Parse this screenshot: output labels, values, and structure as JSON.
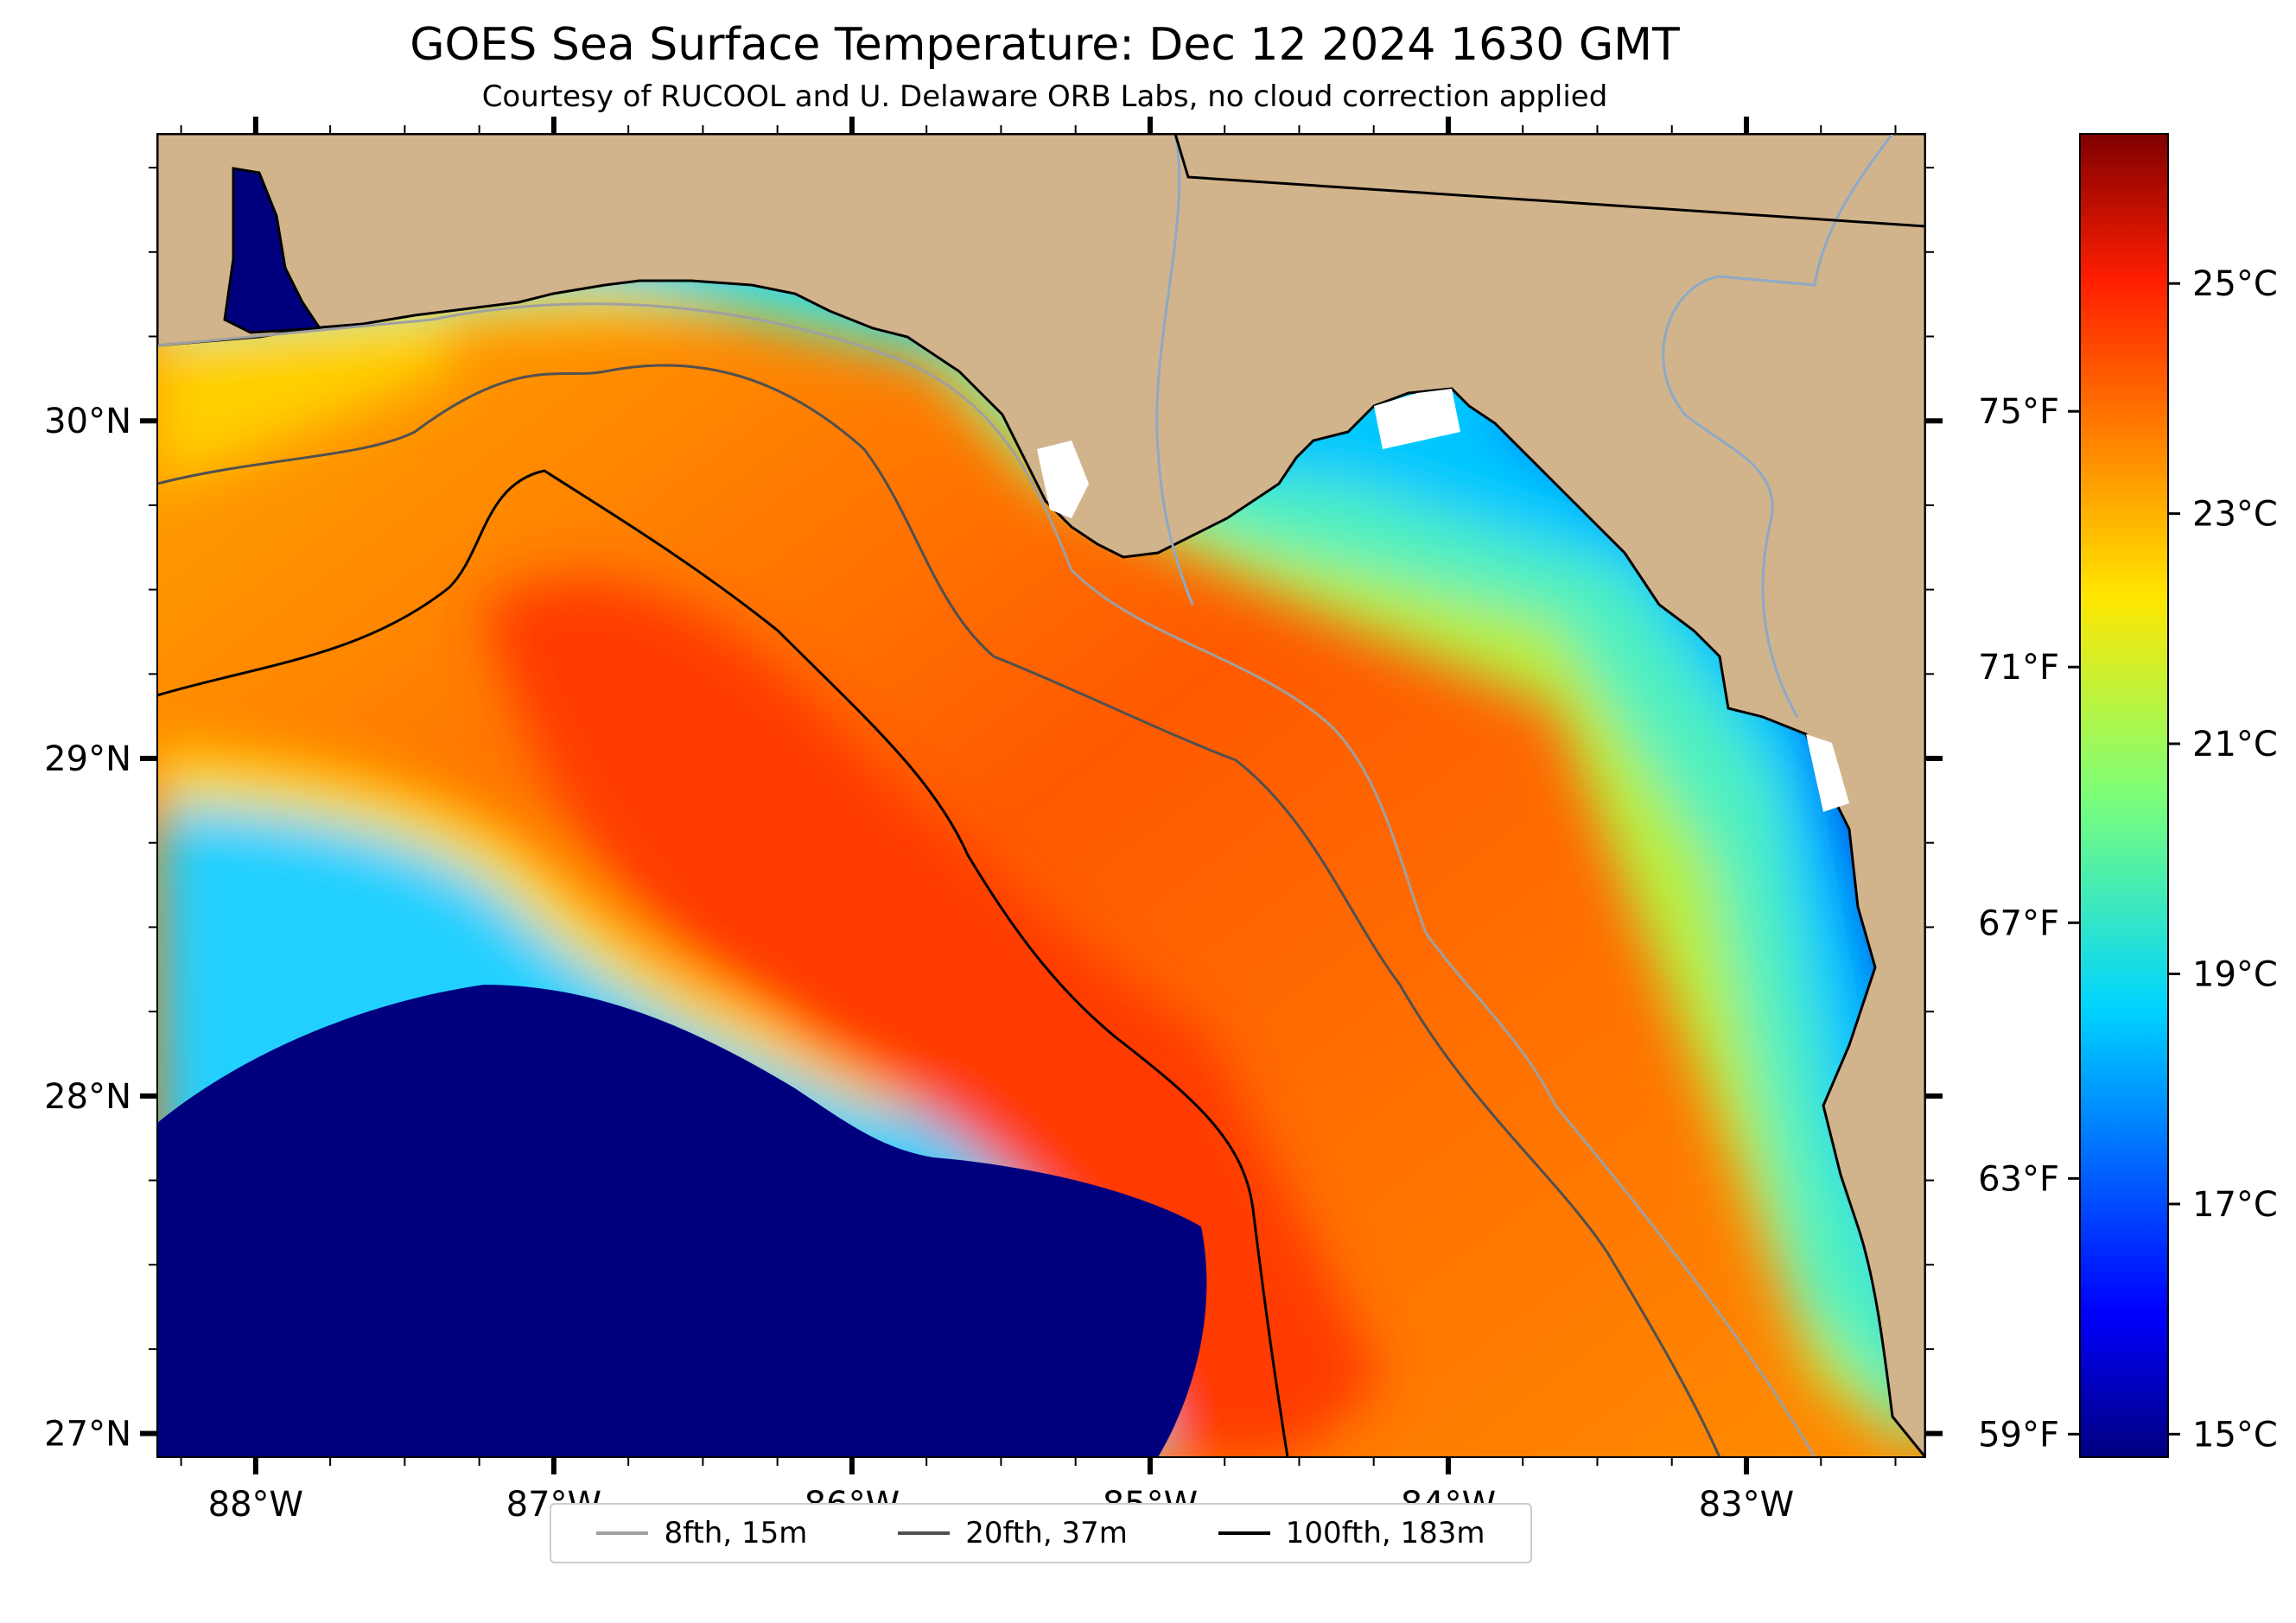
{
  "title": "GOES Sea Surface Temperature: Dec 12 2024 1630 GMT",
  "subtitle": "Courtesy of RUCOOL and U. Delaware ORB Labs, no cloud correction applied",
  "map": {
    "lon_range": [
      -88.33,
      -82.4
    ],
    "lat_range": [
      26.93,
      30.85
    ],
    "lon_ticks": [
      {
        "value": -88,
        "label": "88°W"
      },
      {
        "value": -87,
        "label": "87°W"
      },
      {
        "value": -86,
        "label": "86°W"
      },
      {
        "value": -85,
        "label": "85°W"
      },
      {
        "value": -84,
        "label": "84°W"
      },
      {
        "value": -83,
        "label": "83°W"
      }
    ],
    "lat_ticks": [
      {
        "value": 30,
        "label": "30°N"
      },
      {
        "value": 29,
        "label": "29°N"
      },
      {
        "value": 28,
        "label": "28°N"
      },
      {
        "value": 27,
        "label": "27°N"
      }
    ],
    "colors": {
      "land": "#D2B48C",
      "cold": "#00007F",
      "coast": "#000000"
    }
  },
  "colorbar": {
    "range_c": [
      14.8,
      26.3
    ],
    "celsius_ticks": [
      {
        "value": 15,
        "label": "15°C"
      },
      {
        "value": 17,
        "label": "17°C"
      },
      {
        "value": 19,
        "label": "19°C"
      },
      {
        "value": 21,
        "label": "21°C"
      },
      {
        "value": 23,
        "label": "23°C"
      },
      {
        "value": 25,
        "label": "25°C"
      }
    ],
    "fahrenheit_ticks": [
      {
        "value": 59,
        "label": "59°F"
      },
      {
        "value": 63,
        "label": "63°F"
      },
      {
        "value": 67,
        "label": "67°F"
      },
      {
        "value": 71,
        "label": "71°F"
      },
      {
        "value": 75,
        "label": "75°F"
      }
    ],
    "colormap": "jet"
  },
  "legend": {
    "items": [
      {
        "label": "8fth, 15m",
        "color": "#A0A0A0"
      },
      {
        "label": "20fth, 37m",
        "color": "#505050"
      },
      {
        "label": "100fth, 183m",
        "color": "#000000"
      }
    ]
  }
}
